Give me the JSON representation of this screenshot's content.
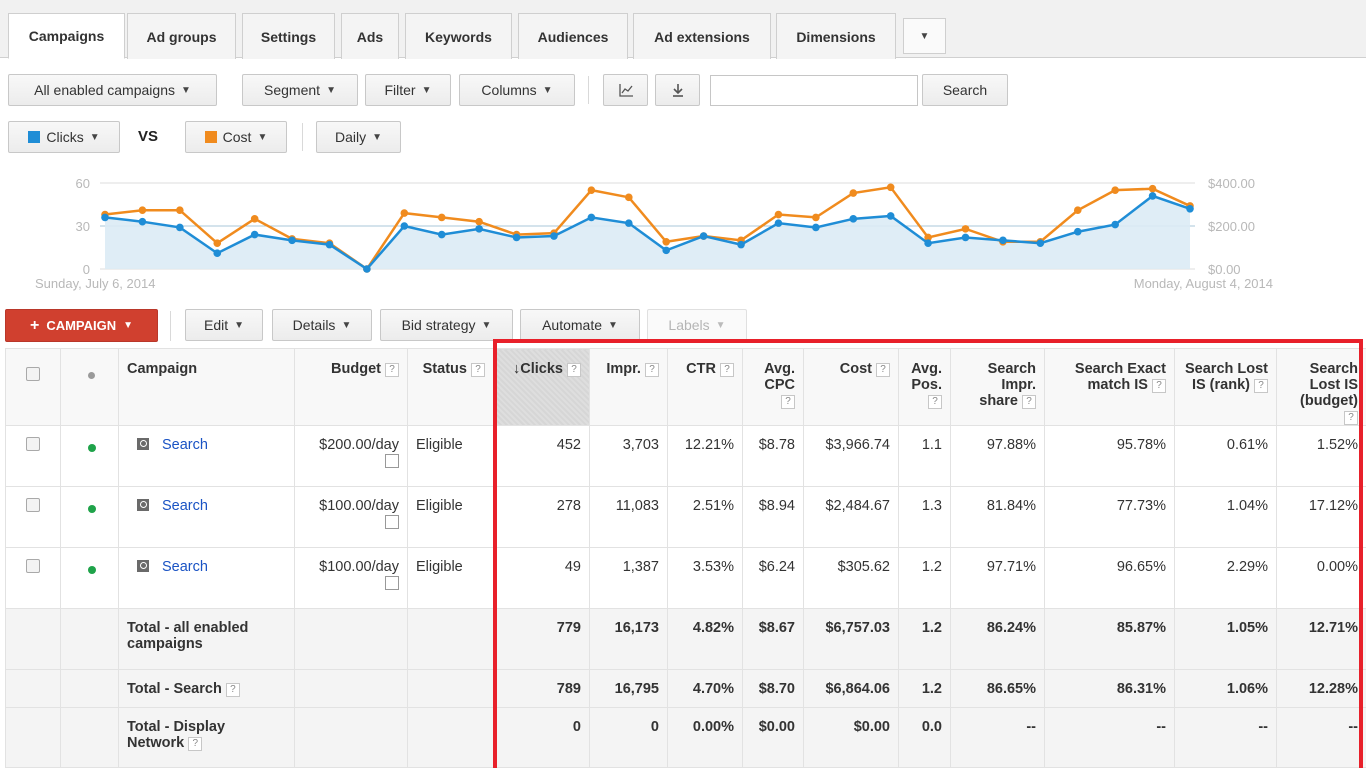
{
  "tabs": [
    "Campaigns",
    "Ad groups",
    "Settings",
    "Ads",
    "Keywords",
    "Audiences",
    "Ad extensions",
    "Dimensions"
  ],
  "toolbar": {
    "filter_view": "All enabled campaigns",
    "segment": "Segment",
    "filter": "Filter",
    "columns": "Columns",
    "search_value": "",
    "search_label": "Search"
  },
  "chart_controls": {
    "metric1": "Clicks",
    "metric1_color": "#1f8dd6",
    "vs": "VS",
    "metric2": "Cost",
    "metric2_color": "#f08b1e",
    "period": "Daily"
  },
  "chart_data": {
    "type": "line",
    "x_start_label": "Sunday, July 6, 2014",
    "x_end_label": "Monday, August 4, 2014",
    "left_axis": {
      "ticks": [
        "0",
        "30",
        "60"
      ],
      "ylim": [
        0,
        60
      ]
    },
    "right_axis": {
      "ticks": [
        "$0.00",
        "$200.00",
        "$400.00"
      ],
      "ylim": [
        0,
        400
      ]
    },
    "grid": true,
    "series": [
      {
        "name": "Clicks",
        "axis": "left",
        "color": "#1f8dd6",
        "values": [
          36,
          33,
          29,
          11,
          24,
          20,
          17,
          0,
          30,
          24,
          28,
          22,
          23,
          36,
          32,
          13,
          23,
          17,
          32,
          29,
          35,
          37,
          18,
          22,
          20,
          18,
          26,
          31,
          51,
          42
        ]
      },
      {
        "name": "Cost",
        "axis": "left",
        "color": "#f08b1e",
        "values": [
          38,
          41,
          41,
          18,
          35,
          21,
          18,
          0,
          39,
          36,
          33,
          24,
          25,
          55,
          50,
          19,
          23,
          20,
          38,
          36,
          53,
          57,
          22,
          28,
          19,
          19,
          41,
          55,
          56,
          44
        ]
      }
    ]
  },
  "grid_actions": {
    "campaign": "CAMPAIGN",
    "edit": "Edit",
    "details": "Details",
    "bid_strategy": "Bid strategy",
    "automate": "Automate",
    "labels": "Labels"
  },
  "columns": {
    "campaign": "Campaign",
    "budget": "Budget",
    "status": "Status",
    "clicks": "Clicks",
    "impr": "Impr.",
    "ctr": "CTR",
    "avg_cpc": "Avg. CPC",
    "cost": "Cost",
    "avg_pos": "Avg. Pos.",
    "search_impr_share": "Search Impr. share",
    "search_exact_match_is": "Search Exact match IS",
    "search_lost_is_rank": "Search Lost IS (rank)",
    "search_lost_is_budget": "Search Lost IS (budget)",
    "help": "?"
  },
  "rows": [
    {
      "campaign": "Search",
      "budget": "$200.00/day",
      "status": "Eligible",
      "clicks": "452",
      "impr": "3,703",
      "ctr": "12.21%",
      "avg_cpc": "$8.78",
      "cost": "$3,966.74",
      "avg_pos": "1.1",
      "sis": "97.88%",
      "semis": "95.78%",
      "slr": "0.61%",
      "slb": "1.52%"
    },
    {
      "campaign": "Search",
      "budget": "$100.00/day",
      "status": "Eligible",
      "clicks": "278",
      "impr": "11,083",
      "ctr": "2.51%",
      "avg_cpc": "$8.94",
      "cost": "$2,484.67",
      "avg_pos": "1.3",
      "sis": "81.84%",
      "semis": "77.73%",
      "slr": "1.04%",
      "slb": "17.12%"
    },
    {
      "campaign": "Search",
      "budget": "$100.00/day",
      "status": "Eligible",
      "clicks": "49",
      "impr": "1,387",
      "ctr": "3.53%",
      "avg_cpc": "$6.24",
      "cost": "$305.62",
      "avg_pos": "1.2",
      "sis": "97.71%",
      "semis": "96.65%",
      "slr": "2.29%",
      "slb": "0.00%"
    }
  ],
  "totals": [
    {
      "label": "Total - all enabled campaigns",
      "clicks": "779",
      "impr": "16,173",
      "ctr": "4.82%",
      "avg_cpc": "$8.67",
      "cost": "$6,757.03",
      "avg_pos": "1.2",
      "sis": "86.24%",
      "semis": "85.87%",
      "slr": "1.05%",
      "slb": "12.71%"
    },
    {
      "label": "Total - Search",
      "clicks": "789",
      "impr": "16,795",
      "ctr": "4.70%",
      "avg_cpc": "$8.70",
      "cost": "$6,864.06",
      "avg_pos": "1.2",
      "sis": "86.65%",
      "semis": "86.31%",
      "slr": "1.06%",
      "slb": "12.28%"
    },
    {
      "label": "Total - Display Network",
      "clicks": "0",
      "impr": "0",
      "ctr": "0.00%",
      "avg_cpc": "$0.00",
      "cost": "$0.00",
      "avg_pos": "0.0",
      "sis": "--",
      "semis": "--",
      "slr": "--",
      "slb": "--"
    }
  ]
}
